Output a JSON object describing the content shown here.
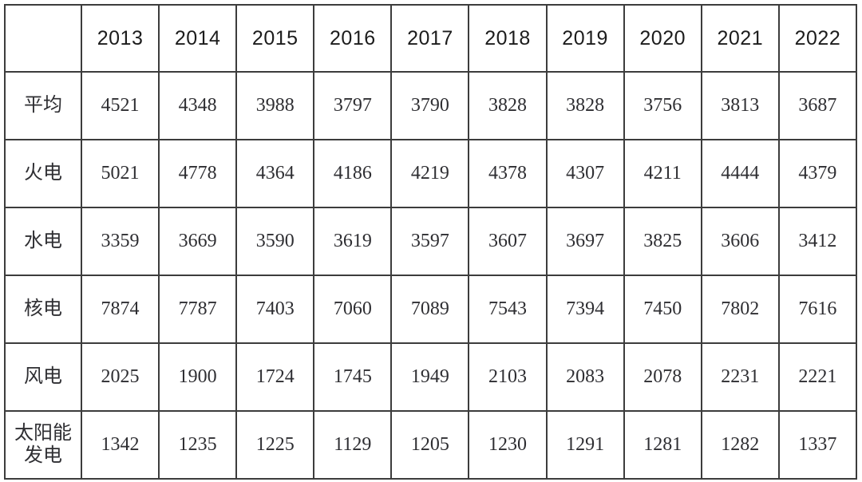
{
  "chart_data": {
    "type": "table",
    "title": "",
    "corner_label": "",
    "categories": [
      "2013",
      "2014",
      "2015",
      "2016",
      "2017",
      "2018",
      "2019",
      "2020",
      "2021",
      "2022"
    ],
    "series": [
      {
        "name": "平均",
        "values": [
          4521,
          4348,
          3988,
          3797,
          3790,
          3828,
          3828,
          3756,
          3813,
          3687
        ]
      },
      {
        "name": "火电",
        "values": [
          5021,
          4778,
          4364,
          4186,
          4219,
          4378,
          4307,
          4211,
          4444,
          4379
        ]
      },
      {
        "name": "水电",
        "values": [
          3359,
          3669,
          3590,
          3619,
          3597,
          3607,
          3697,
          3825,
          3606,
          3412
        ]
      },
      {
        "name": "核电",
        "values": [
          7874,
          7787,
          7403,
          7060,
          7089,
          7543,
          7394,
          7450,
          7802,
          7616
        ]
      },
      {
        "name": "风电",
        "values": [
          2025,
          1900,
          1724,
          1745,
          1949,
          2103,
          2083,
          2078,
          2231,
          2221
        ]
      },
      {
        "name": "太阳能发电",
        "values": [
          1342,
          1235,
          1225,
          1129,
          1205,
          1230,
          1291,
          1281,
          1282,
          1337
        ]
      }
    ],
    "layout": {
      "grid": true,
      "header_row": "years",
      "row_count": 6,
      "column_count": 11
    }
  },
  "style": {
    "border_color": "#3c3c3c",
    "header_text_color": "#1c1c1c",
    "body_text_color": "#2e2e32",
    "background_color": "#ffffff"
  }
}
